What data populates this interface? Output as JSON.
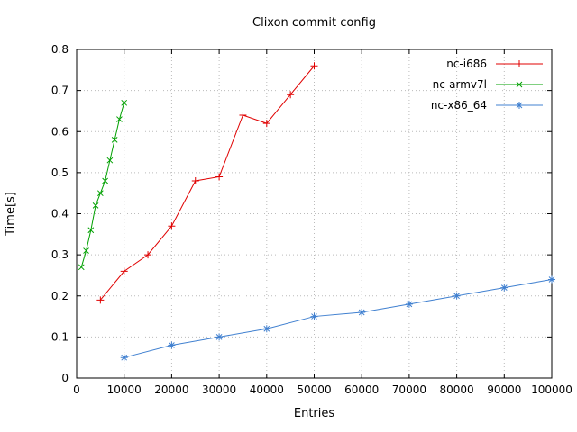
{
  "chart_data": {
    "type": "line",
    "title": "Clixon commit config",
    "xlabel": "Entries",
    "ylabel": "Time[s]",
    "xlim": [
      0,
      100000
    ],
    "ylim": [
      0,
      0.8
    ],
    "xticks": [
      0,
      10000,
      20000,
      30000,
      40000,
      50000,
      60000,
      70000,
      80000,
      90000,
      100000
    ],
    "xtick_labels": [
      "0",
      "10000",
      "20000",
      "30000",
      "40000",
      "50000",
      "60000",
      "70000",
      "80000",
      "90000",
      "100000"
    ],
    "yticks": [
      0,
      0.1,
      0.2,
      0.3,
      0.4,
      0.5,
      0.6,
      0.7,
      0.8
    ],
    "ytick_labels": [
      "0",
      "0.1",
      "0.2",
      "0.3",
      "0.4",
      "0.5",
      "0.6",
      "0.7",
      "0.8"
    ],
    "grid": true,
    "legend_position": "top-right",
    "series": [
      {
        "name": "nc-i686",
        "color": "#e00000",
        "marker": "plus",
        "x": [
          5000,
          10000,
          15000,
          20000,
          25000,
          30000,
          35000,
          40000,
          45000,
          50000
        ],
        "y": [
          0.19,
          0.26,
          0.3,
          0.37,
          0.48,
          0.49,
          0.64,
          0.62,
          0.69,
          0.76
        ]
      },
      {
        "name": "nc-armv7l",
        "color": "#00a000",
        "marker": "x",
        "x": [
          1000,
          2000,
          3000,
          4000,
          5000,
          6000,
          7000,
          8000,
          9000,
          10000
        ],
        "y": [
          0.27,
          0.31,
          0.36,
          0.42,
          0.45,
          0.48,
          0.53,
          0.58,
          0.63,
          0.67
        ]
      },
      {
        "name": "nc-x86_64",
        "color": "#4080d0",
        "marker": "asterisk",
        "x": [
          10000,
          20000,
          30000,
          40000,
          50000,
          60000,
          70000,
          80000,
          90000,
          100000
        ],
        "y": [
          0.05,
          0.08,
          0.1,
          0.12,
          0.15,
          0.16,
          0.18,
          0.2,
          0.22,
          0.24
        ]
      }
    ]
  }
}
